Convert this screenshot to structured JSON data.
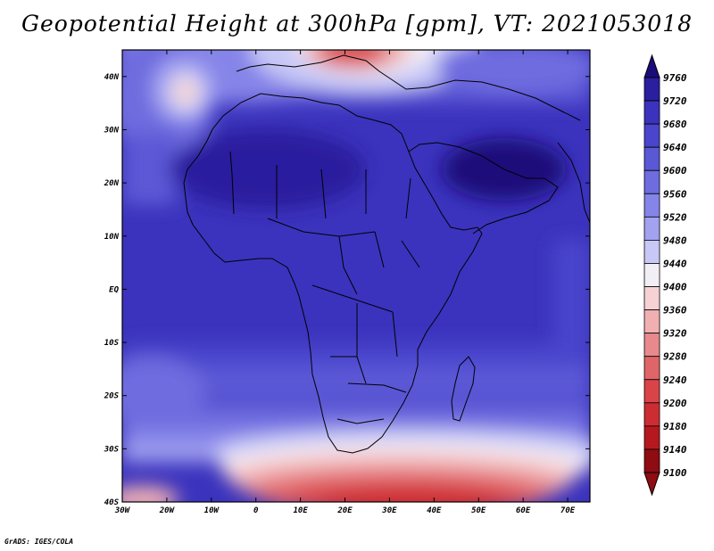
{
  "title": "Geopotential Height at 300hPa [gpm], VT: 2021053018",
  "credit": "GrADS: IGES/COLA",
  "lat_labels": [
    "40N",
    "30N",
    "20N",
    "10N",
    "EQ",
    "10S",
    "20S",
    "30S",
    "40S"
  ],
  "lat_values": [
    40,
    30,
    20,
    10,
    0,
    -10,
    -20,
    -30,
    -40
  ],
  "lon_labels": [
    "30W",
    "20W",
    "10W",
    "0",
    "10E",
    "20E",
    "30E",
    "40E",
    "50E",
    "60E",
    "70E"
  ],
  "lon_values": [
    -30,
    -20,
    -10,
    0,
    10,
    20,
    30,
    40,
    50,
    60,
    70
  ],
  "extent": {
    "lon_min": -30,
    "lon_max": 75,
    "lat_min": -40,
    "lat_max": 45
  },
  "colorbar": {
    "levels": [
      "9760",
      "9720",
      "9680",
      "9640",
      "9600",
      "9560",
      "9520",
      "9480",
      "9440",
      "9400",
      "9360",
      "9320",
      "9280",
      "9240",
      "9200",
      "9180",
      "9140",
      "9100"
    ],
    "colors": [
      "#1a0d7a",
      "#2a1f9e",
      "#3b33bd",
      "#4a45cc",
      "#5b58d6",
      "#6e6cdf",
      "#8584e8",
      "#a3a2f0",
      "#c8c8f7",
      "#f2eef5",
      "#f6d2d4",
      "#f0b0b2",
      "#e88a8d",
      "#e06568",
      "#d84448",
      "#cc2d32",
      "#b5191f",
      "#8e0c12"
    ]
  }
}
